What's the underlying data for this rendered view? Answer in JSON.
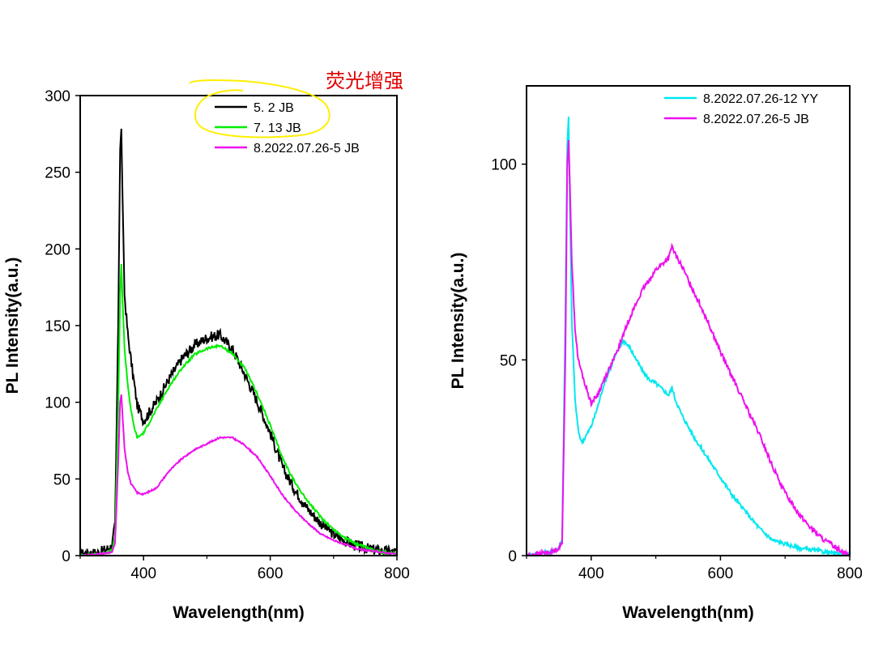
{
  "annotation": {
    "text": "荧光增强",
    "color": "#e00000",
    "highlight_color": "#ffee00"
  },
  "chart_data": [
    {
      "type": "line",
      "xlabel": "Wavelength(nm)",
      "ylabel": "PL Intensity(a.u.)",
      "xlim": [
        300,
        800
      ],
      "ylim": [
        0,
        300
      ],
      "xticks": [
        400,
        600,
        800
      ],
      "yticks": [
        0,
        50,
        100,
        150,
        200,
        250,
        300
      ],
      "legend_position": "top-right",
      "grid": false,
      "series": [
        {
          "name": "5. 2 JB",
          "color": "#000000",
          "noise": 3.5,
          "x": [
            300,
            330,
            350,
            355,
            360,
            363,
            365,
            367,
            370,
            375,
            380,
            390,
            400,
            420,
            440,
            460,
            480,
            500,
            520,
            540,
            560,
            580,
            600,
            620,
            640,
            660,
            680,
            700,
            720,
            740,
            760,
            780,
            800
          ],
          "y": [
            1,
            2,
            6,
            20,
            150,
            265,
            278,
            230,
            170,
            145,
            128,
            98,
            88,
            100,
            115,
            128,
            137,
            142,
            144,
            135,
            118,
            100,
            80,
            57,
            42,
            30,
            21,
            14,
            9,
            6,
            4,
            3,
            2
          ]
        },
        {
          "name": "7. 13 JB",
          "color": "#00ee00",
          "noise": 0.8,
          "x": [
            300,
            330,
            350,
            355,
            360,
            363,
            365,
            367,
            370,
            375,
            380,
            385,
            390,
            400,
            420,
            440,
            460,
            480,
            500,
            520,
            540,
            560,
            580,
            600,
            620,
            640,
            660,
            680,
            700,
            720,
            740,
            760,
            780,
            800
          ],
          "y": [
            0,
            1,
            3,
            12,
            95,
            170,
            190,
            165,
            135,
            112,
            95,
            84,
            77,
            80,
            95,
            110,
            122,
            131,
            135,
            137,
            132,
            122,
            105,
            85,
            63,
            47,
            35,
            25,
            17,
            11,
            7,
            4,
            2,
            1
          ]
        },
        {
          "name": "8.2022.07.26-5 JB",
          "color": "#ee11ee",
          "noise": 0.5,
          "x": [
            300,
            330,
            350,
            355,
            360,
            363,
            365,
            367,
            370,
            375,
            380,
            390,
            400,
            410,
            420,
            440,
            460,
            480,
            500,
            520,
            540,
            560,
            580,
            600,
            620,
            640,
            660,
            680,
            700,
            720,
            740,
            760,
            780,
            800
          ],
          "y": [
            0,
            1,
            2,
            8,
            60,
            100,
            105,
            90,
            70,
            55,
            47,
            41,
            40,
            42,
            44,
            55,
            63,
            69,
            73,
            77,
            77,
            72,
            64,
            52,
            39,
            29,
            21,
            14,
            10,
            7,
            4,
            3,
            2,
            1
          ]
        }
      ]
    },
    {
      "type": "line",
      "xlabel": "Wavelength(nm)",
      "ylabel": "PL Intensity(a.u.)",
      "xlim": [
        300,
        800
      ],
      "ylim": [
        0,
        120
      ],
      "xticks": [
        400,
        600,
        800
      ],
      "yticks": [
        0,
        50,
        100
      ],
      "legend_position": "top-right",
      "grid": false,
      "series": [
        {
          "name": "8.2022.07.26-12 YY",
          "color": "#00e8f0",
          "noise": 0.5,
          "x": [
            300,
            320,
            340,
            350,
            355,
            360,
            363,
            365,
            367,
            370,
            375,
            380,
            385,
            390,
            400,
            410,
            420,
            440,
            450,
            460,
            480,
            490,
            500,
            520,
            525,
            530,
            540,
            560,
            580,
            600,
            620,
            640,
            660,
            680,
            700,
            720,
            740,
            760,
            780,
            800
          ],
          "y": [
            0,
            0.5,
            1,
            2,
            4,
            60,
            105,
            112,
            90,
            60,
            40,
            32,
            29,
            30,
            33,
            38,
            44,
            52,
            55,
            53,
            47,
            45,
            44,
            41,
            43,
            40,
            36,
            30,
            25,
            20,
            15,
            11,
            7,
            4,
            3,
            2,
            1.5,
            1,
            0.5,
            0
          ]
        },
        {
          "name": "8.2022.07.26-5 JB",
          "color": "#ee11ee",
          "noise": 0.6,
          "x": [
            300,
            320,
            340,
            350,
            355,
            360,
            363,
            365,
            367,
            370,
            375,
            380,
            390,
            400,
            410,
            420,
            440,
            460,
            480,
            500,
            520,
            525,
            530,
            540,
            560,
            580,
            600,
            620,
            640,
            660,
            680,
            700,
            720,
            740,
            760,
            780,
            800
          ],
          "y": [
            0,
            0.5,
            1,
            2,
            3,
            50,
            100,
            106,
            95,
            75,
            58,
            50,
            44,
            39,
            41,
            45,
            52,
            61,
            68,
            73,
            76,
            79,
            77,
            74,
            67,
            60,
            52,
            45,
            38,
            31,
            23,
            16,
            11,
            7,
            4,
            2,
            0
          ]
        }
      ]
    }
  ]
}
